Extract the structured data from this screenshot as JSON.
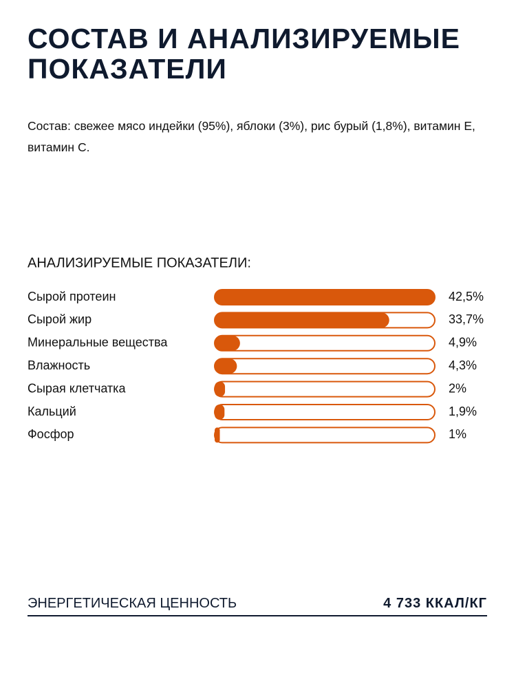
{
  "header": {
    "title": "СОСТАВ И АНАЛИЗИРУЕМЫЕ ПОКАЗАТЕЛИ"
  },
  "composition": "Состав: свежее мясо индейки (95%), яблоки (3%), рис бурый (1,8%), витамин E, витамин C.",
  "chart_data": {
    "type": "bar",
    "title": "АНАЛИЗИРУЕМЫЕ ПОКАЗАТЕЛИ:",
    "categories": [
      "Сырой протеин",
      "Сырой жир",
      "Минеральные вещества",
      "Влажность",
      "Сырая клетчатка",
      "Кальций",
      "Фосфор"
    ],
    "values": [
      42.5,
      33.7,
      4.9,
      4.3,
      2,
      1.9,
      1
    ],
    "value_labels": [
      "42,5%",
      "33,7%",
      "4,9%",
      "4,3%",
      "2%",
      "1,9%",
      "1%"
    ],
    "color": "#d9580b"
  },
  "energy": {
    "label": "ЭНЕРГЕТИЧЕСКАЯ ЦЕННОСТЬ",
    "value": "4 733 ККАЛ/КГ"
  }
}
